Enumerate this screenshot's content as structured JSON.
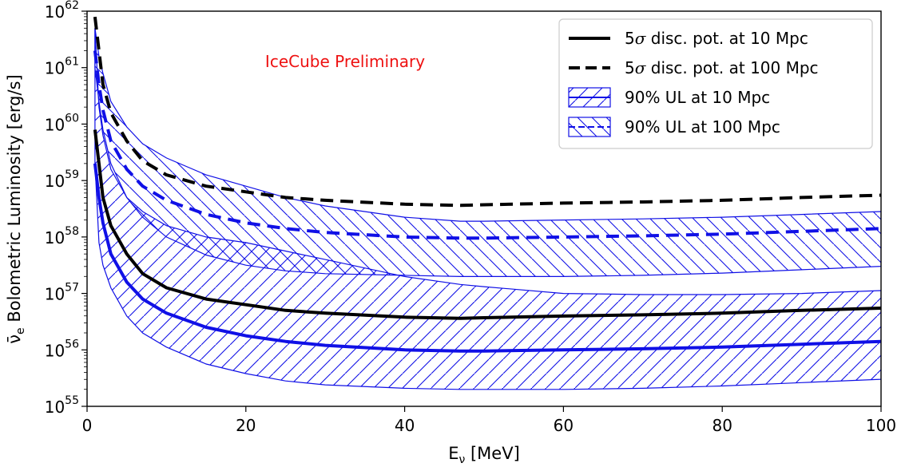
{
  "chart_data": {
    "type": "line",
    "xlabel": "E",
    "xlabel_sub": "ν",
    "xlabel_unit": " [MeV]",
    "ylabel_nu": "ν̄",
    "ylabel_sub": "e",
    "ylabel_rest": " Bolometric Luminosity [erg/s]",
    "xlim": [
      0,
      100
    ],
    "ylim_log10": [
      55,
      62
    ],
    "y_scale": "log",
    "grid": false,
    "legend_position": "top-right",
    "annotation": "IceCube Preliminary",
    "annotation_color": "#ee1111",
    "x_ticks": [
      {
        "value": 0,
        "label": "0"
      },
      {
        "value": 20,
        "label": "20"
      },
      {
        "value": 40,
        "label": "40"
      },
      {
        "value": 60,
        "label": "60"
      },
      {
        "value": 80,
        "label": "80"
      },
      {
        "value": 100,
        "label": "100"
      }
    ],
    "y_ticks": [
      {
        "value": 55,
        "base": "10",
        "exp": "55"
      },
      {
        "value": 56,
        "base": "10",
        "exp": "56"
      },
      {
        "value": 57,
        "base": "10",
        "exp": "57"
      },
      {
        "value": 58,
        "base": "10",
        "exp": "58"
      },
      {
        "value": 59,
        "base": "10",
        "exp": "59"
      },
      {
        "value": 60,
        "base": "10",
        "exp": "60"
      },
      {
        "value": 61,
        "base": "10",
        "exp": "61"
      },
      {
        "value": 62,
        "base": "10",
        "exp": "62"
      }
    ],
    "x": [
      1,
      1.5,
      2,
      3,
      5,
      7,
      10,
      15,
      20,
      25,
      30,
      40,
      47,
      50,
      60,
      70,
      80,
      90,
      100
    ],
    "legend": [
      {
        "id": "disc10",
        "label_pre": "5",
        "label_sym": "σ",
        "label_post": " disc. pot. at 10 Mpc",
        "style": "solid",
        "color": "#000000"
      },
      {
        "id": "disc100",
        "label_pre": "5",
        "label_sym": "σ",
        "label_post": " disc. pot. at 100 Mpc",
        "style": "dashed",
        "color": "#000000"
      },
      {
        "id": "ul10",
        "label_pre": "",
        "label_sym": "",
        "label_post": "90% UL at 10 Mpc",
        "style": "hatched-solid",
        "color": "#1010e6"
      },
      {
        "id": "ul100",
        "label_pre": "",
        "label_sym": "",
        "label_post": "90% UL at 100 Mpc",
        "style": "hatched-dashed",
        "color": "#1010e6"
      }
    ],
    "series": [
      {
        "id": "disc10",
        "style": "solid",
        "color": "#000000",
        "log10_y": [
          59.9,
          59.3,
          58.7,
          58.2,
          57.7,
          57.35,
          57.1,
          56.9,
          56.8,
          56.7,
          56.65,
          56.58,
          56.56,
          56.57,
          56.6,
          56.62,
          56.65,
          56.7,
          56.74
        ]
      },
      {
        "id": "disc100",
        "style": "dashed",
        "color": "#000000",
        "log10_y": [
          61.9,
          61.3,
          60.7,
          60.2,
          59.7,
          59.35,
          59.1,
          58.9,
          58.8,
          58.7,
          58.65,
          58.58,
          58.56,
          58.57,
          58.6,
          58.62,
          58.65,
          58.7,
          58.74
        ]
      },
      {
        "id": "ul10",
        "style": "hatched-solid",
        "color": "#1010e6",
        "log10_y": [
          59.3,
          58.7,
          58.25,
          57.7,
          57.2,
          56.9,
          56.65,
          56.4,
          56.25,
          56.15,
          56.08,
          56.0,
          55.98,
          55.98,
          56.0,
          56.02,
          56.05,
          56.1,
          56.15
        ],
        "log10_upper": [
          61.7,
          60.3,
          59.8,
          59.2,
          58.7,
          58.45,
          58.2,
          58.0,
          57.9,
          57.75,
          57.6,
          57.3,
          57.16,
          57.12,
          57.0,
          56.98,
          56.98,
          57.0,
          57.05
        ],
        "log10_lower": [
          59.3,
          57.9,
          57.5,
          57.1,
          56.6,
          56.3,
          56.05,
          55.75,
          55.58,
          55.45,
          55.38,
          55.32,
          55.3,
          55.3,
          55.3,
          55.32,
          55.36,
          55.42,
          55.48
        ]
      },
      {
        "id": "ul100",
        "style": "hatched-dashed",
        "color": "#1010e6",
        "log10_y": [
          61.3,
          60.7,
          60.25,
          59.7,
          59.2,
          58.9,
          58.65,
          58.4,
          58.25,
          58.15,
          58.08,
          58.0,
          57.98,
          57.98,
          58.0,
          58.02,
          58.05,
          58.1,
          58.15
        ],
        "log10_upper": [
          61.7,
          61.2,
          60.9,
          60.4,
          59.95,
          59.65,
          59.4,
          59.1,
          58.9,
          58.7,
          58.55,
          58.35,
          58.28,
          58.28,
          58.3,
          58.32,
          58.35,
          58.4,
          58.45
        ],
        "log10_lower": [
          61.0,
          60.4,
          59.9,
          59.3,
          58.7,
          58.35,
          58.0,
          57.68,
          57.5,
          57.4,
          57.35,
          57.32,
          57.3,
          57.3,
          57.3,
          57.32,
          57.36,
          57.42,
          57.48
        ]
      }
    ]
  }
}
